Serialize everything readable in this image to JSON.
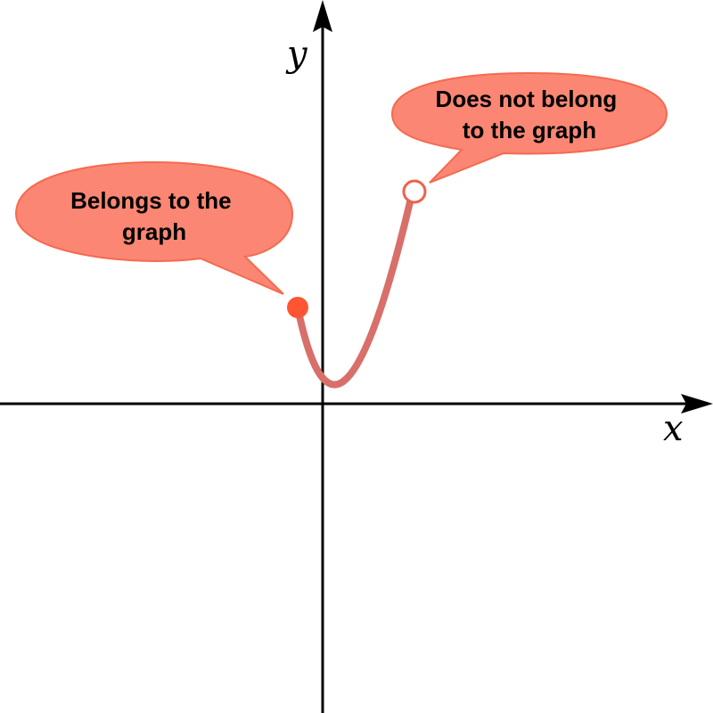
{
  "axes": {
    "x_label": "x",
    "y_label": "y"
  },
  "graph": {
    "closed_endpoint_label": "Belongs to the graph",
    "open_endpoint_label": "Does not belong to the graph"
  },
  "callouts": {
    "belongs": {
      "line1": "Belongs to the",
      "line2": "graph"
    },
    "not_belongs": {
      "line1": "Does not belong",
      "line2": "to the graph"
    }
  },
  "colors": {
    "curve": "#d96f6a",
    "closed_point": "#ff5533",
    "open_point_fill": "#ffffff",
    "open_point_stroke": "#f0614c",
    "callout_fill": "#fb8673",
    "callout_stroke": "#f56a4f",
    "axis": "#000000"
  },
  "icons": {
    "closed_point": "filled-circle",
    "open_point": "hollow-circle"
  }
}
